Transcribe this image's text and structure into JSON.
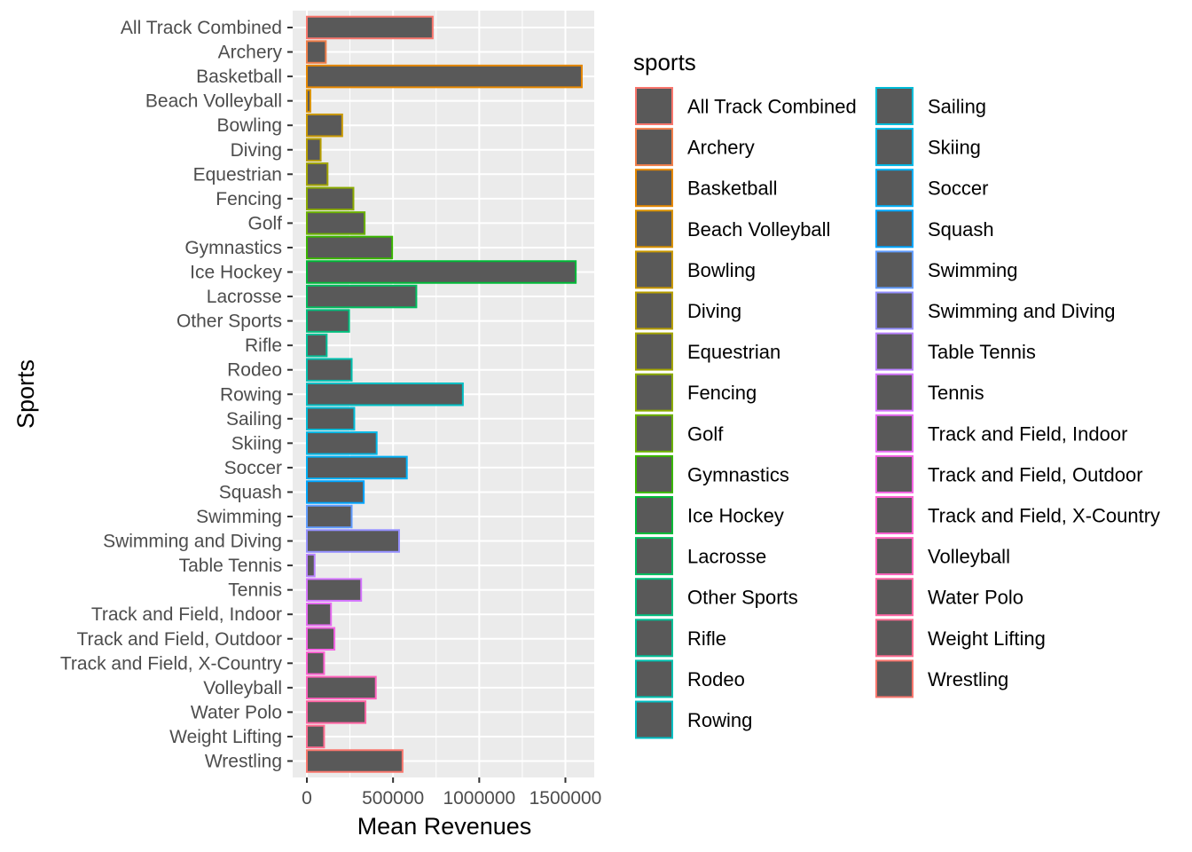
{
  "chart_data": {
    "type": "bar",
    "orientation": "horizontal",
    "xlabel": "Mean Revenues",
    "ylabel": "Sports",
    "xlim": [
      0,
      1680000
    ],
    "x_ticks": [
      0,
      500000,
      1000000,
      1500000
    ],
    "x_tick_labels": [
      "0",
      "500000",
      "1000000",
      "1500000"
    ],
    "grid": true,
    "panel_background": "#ebebeb",
    "bar_fill": "#595959",
    "legend_title": "sports",
    "legend_position": "right",
    "categories": [
      "All Track Combined",
      "Archery",
      "Basketball",
      "Beach Volleyball",
      "Bowling",
      "Diving",
      "Equestrian",
      "Fencing",
      "Golf",
      "Gymnastics",
      "Ice Hockey",
      "Lacrosse",
      "Other Sports",
      "Rifle",
      "Rodeo",
      "Rowing",
      "Sailing",
      "Skiing",
      "Soccer",
      "Squash",
      "Swimming",
      "Swimming and Diving",
      "Table Tennis",
      "Tennis",
      "Track and Field, Indoor",
      "Track and Field, Outdoor",
      "Track and Field, X-Country",
      "Volleyball",
      "Water Polo",
      "Weight Lifting",
      "Wrestling"
    ],
    "values": [
      730000,
      110000,
      1595000,
      20000,
      205000,
      80000,
      120000,
      270000,
      335000,
      495000,
      1560000,
      635000,
      245000,
      115000,
      260000,
      905000,
      275000,
      405000,
      580000,
      330000,
      260000,
      535000,
      45000,
      315000,
      140000,
      160000,
      100000,
      400000,
      340000,
      100000,
      555000
    ],
    "colors": [
      "#F8766D",
      "#F07E4A",
      "#E58700",
      "#D89000",
      "#C99800",
      "#B79F00",
      "#A3A500",
      "#8BAB00",
      "#6BB100",
      "#39B600",
      "#00BA38",
      "#00BD5F",
      "#00BF7D",
      "#00C097",
      "#00C0AF",
      "#00BFC4",
      "#00BCD8",
      "#00B8E7",
      "#00B0F6",
      "#00A5FF",
      "#619CFF",
      "#9590FF",
      "#B983FF",
      "#D575FE",
      "#E76BF3",
      "#F464E4",
      "#FD61D1",
      "#FF62BC",
      "#FF66A4",
      "#FF6C91",
      "#F8766D"
    ]
  }
}
